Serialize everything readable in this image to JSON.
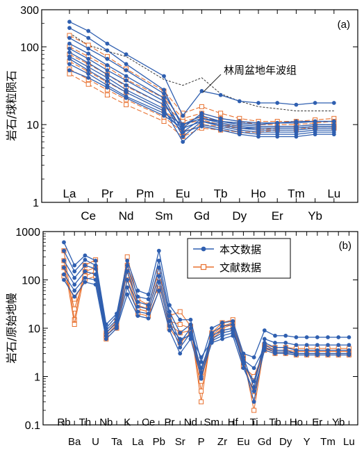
{
  "colors": {
    "this_study": "#2f5fb0",
    "literature": "#e8702e",
    "reference": "#333333",
    "axis": "#000000"
  },
  "chart_data": [
    {
      "type": "line",
      "panel_label": "(a)",
      "ylabel": "岩石/球粒陨石",
      "yscale": "log",
      "ylim": [
        1,
        300
      ],
      "y_ticks": [
        {
          "value": 300,
          "label": "300"
        },
        {
          "value": 100,
          "label": "100"
        },
        {
          "value": 10,
          "label": "10"
        },
        {
          "value": 1,
          "label": "1"
        }
      ],
      "categories": [
        "La",
        "Ce",
        "Pr",
        "Nd",
        "Pm",
        "Sm",
        "Eu",
        "Gd",
        "Tb",
        "Dy",
        "Ho",
        "Er",
        "Tm",
        "Yb",
        "Lu"
      ],
      "gap_indices": [
        4
      ],
      "annotation": {
        "text": "林周盆地年波组",
        "target_category": "Gd"
      },
      "reference_line": {
        "values": [
          150,
          105,
          88,
          75,
          0,
          38,
          32,
          40,
          25,
          20,
          17,
          16,
          15,
          15,
          15
        ]
      },
      "series": [
        {
          "group": "this_study",
          "values": [
            210,
            160,
            110,
            80,
            0,
            42,
            13,
            27,
            24,
            20,
            19,
            19,
            18,
            19,
            19
          ]
        },
        {
          "group": "this_study",
          "values": [
            175,
            130,
            90,
            60,
            0,
            28,
            9,
            14,
            12,
            11,
            10.5,
            10.5,
            10.5,
            11,
            11
          ]
        },
        {
          "group": "this_study",
          "values": [
            130,
            95,
            70,
            50,
            0,
            25,
            10,
            13,
            11,
            10,
            9.5,
            9.5,
            9.5,
            10,
            10
          ]
        },
        {
          "group": "this_study",
          "values": [
            110,
            82,
            58,
            42,
            0,
            22,
            8,
            12,
            10.5,
            9.5,
            9,
            9,
            9,
            9.5,
            9.5
          ]
        },
        {
          "group": "this_study",
          "values": [
            95,
            70,
            50,
            37,
            0,
            20,
            7,
            11,
            10,
            9,
            8.5,
            8.5,
            8.5,
            9,
            9
          ]
        },
        {
          "group": "this_study",
          "values": [
            85,
            62,
            44,
            32,
            0,
            18,
            9,
            11,
            9.5,
            8.5,
            8,
            8,
            8,
            8.5,
            8.5
          ]
        },
        {
          "group": "this_study",
          "values": [
            75,
            55,
            40,
            28,
            0,
            16,
            6,
            10,
            9,
            8,
            7.5,
            7.5,
            7.5,
            8,
            8
          ]
        },
        {
          "group": "this_study",
          "values": [
            70,
            50,
            36,
            26,
            0,
            15,
            8,
            9.5,
            8.5,
            7.5,
            7,
            7,
            7,
            7.5,
            7.5
          ]
        },
        {
          "group": "this_study",
          "values": [
            60,
            45,
            32,
            23,
            0,
            14,
            10,
            12,
            11,
            10.5,
            10,
            10.5,
            11,
            11,
            11
          ]
        },
        {
          "group": "this_study",
          "values": [
            50,
            40,
            30,
            22,
            0,
            13,
            9,
            11,
            10,
            9,
            9,
            9,
            9,
            9.5,
            9.5
          ]
        }
      ],
      "literature_series": [
        {
          "group": "literature",
          "values": [
            140,
            105,
            75,
            52,
            0,
            27,
            14,
            17,
            14,
            12,
            11,
            11,
            11,
            11.5,
            12
          ]
        },
        {
          "group": "literature",
          "values": [
            100,
            75,
            55,
            38,
            0,
            22,
            12,
            14,
            12,
            11,
            10,
            10,
            10,
            10.5,
            11
          ]
        },
        {
          "group": "literature",
          "values": [
            80,
            60,
            44,
            31,
            0,
            18,
            11,
            12.5,
            11,
            10,
            9.5,
            9.5,
            9.5,
            10,
            10
          ]
        },
        {
          "group": "literature",
          "values": [
            65,
            48,
            35,
            26,
            0,
            15,
            10,
            11.5,
            10,
            9.5,
            9,
            9,
            9,
            9.5,
            9.5
          ]
        },
        {
          "group": "literature",
          "values": [
            52,
            38,
            28,
            21,
            0,
            12.5,
            8,
            10,
            9.5,
            9,
            8.5,
            9,
            9,
            9,
            9
          ]
        },
        {
          "group": "literature",
          "values": [
            45,
            33,
            24,
            18,
            0,
            11,
            7,
            9,
            8.5,
            8,
            8,
            8.5,
            8.5,
            9,
            9
          ]
        }
      ]
    },
    {
      "type": "line",
      "panel_label": "(b)",
      "ylabel": "岩石/原始地幔",
      "yscale": "log",
      "ylim": [
        0.1,
        1000
      ],
      "y_ticks": [
        {
          "value": 1000,
          "label": "1000"
        },
        {
          "value": 100,
          "label": "100"
        },
        {
          "value": 10,
          "label": "10"
        },
        {
          "value": 1,
          "label": "1"
        },
        {
          "value": 0.1,
          "label": "0.1"
        }
      ],
      "categories": [
        "Rb",
        "Ba",
        "Th",
        "U",
        "Nb",
        "Ta",
        "K",
        "La",
        "Ce",
        "Pb",
        "Pr",
        "Sr",
        "Nd",
        "P",
        "Sm",
        "Zr",
        "Hf",
        "Eu",
        "Ti",
        "Gd",
        "Tb",
        "Dy",
        "Ho",
        "Y",
        "Er",
        "Tm",
        "Yb",
        "Lu"
      ],
      "legend": {
        "position": "top-center",
        "entries": [
          {
            "label": "本文数据",
            "group": "this_study"
          },
          {
            "label": "文献数据",
            "group": "literature"
          }
        ]
      },
      "series": [
        {
          "group": "this_study",
          "values": [
            600,
            200,
            320,
            250,
            12,
            20,
            250,
            60,
            50,
            400,
            30,
            15,
            15,
            2,
            10,
            13,
            14,
            3,
            2.5,
            9,
            7,
            7,
            6.5,
            6.5,
            6.5,
            6.5,
            6.5,
            6.5
          ]
        },
        {
          "group": "this_study",
          "values": [
            400,
            150,
            260,
            200,
            10,
            18,
            200,
            45,
            40,
            250,
            22,
            8,
            12,
            1.2,
            8,
            11,
            12,
            2.5,
            0.6,
            6,
            5,
            5,
            4.5,
            4.5,
            4.5,
            4.5,
            4.5,
            4.5
          ]
        },
        {
          "group": "this_study",
          "values": [
            250,
            110,
            200,
            170,
            9,
            15,
            150,
            35,
            30,
            180,
            18,
            5,
            10,
            0.9,
            7,
            9,
            10,
            2,
            0.3,
            5,
            4,
            4,
            3.5,
            3.5,
            3.5,
            3.5,
            3.5,
            3.5
          ]
        },
        {
          "group": "this_study",
          "values": [
            180,
            80,
            150,
            130,
            8,
            13,
            100,
            28,
            25,
            120,
            14,
            4,
            8,
            1.5,
            6,
            8,
            9,
            1.8,
            0.8,
            4.5,
            3.5,
            3.5,
            3,
            3,
            3,
            3,
            3,
            3
          ]
        },
        {
          "group": "this_study",
          "values": [
            130,
            60,
            110,
            100,
            7,
            11,
            70,
            22,
            20,
            90,
            11,
            6,
            7,
            2.5,
            5.5,
            7,
            8,
            2.2,
            1.5,
            4,
            3.2,
            3.2,
            3,
            3,
            3,
            3,
            3,
            3
          ]
        },
        {
          "group": "this_study",
          "values": [
            100,
            45,
            90,
            80,
            6,
            10,
            50,
            18,
            16,
            60,
            9,
            3,
            6,
            1,
            5,
            6,
            7,
            1.5,
            0.5,
            3.5,
            3,
            3,
            2.8,
            2.8,
            2.8,
            2.8,
            2.8,
            2.8
          ]
        }
      ],
      "literature_series": [
        {
          "group": "literature",
          "values": [
            400,
            15,
            200,
            260,
            8,
            14,
            300,
            40,
            30,
            150,
            18,
            22,
            11,
            0.3,
            8,
            13,
            15,
            2.5,
            0.2,
            4.5,
            4,
            4,
            3.8,
            3.8,
            3.8,
            3.8,
            3.8,
            3.8
          ]
        },
        {
          "group": "literature",
          "values": [
            250,
            12,
            150,
            180,
            7,
            12,
            200,
            30,
            25,
            110,
            14,
            12,
            10,
            0.5,
            7,
            11,
            13,
            2,
            0.4,
            4,
            3.5,
            3.5,
            3.3,
            3.3,
            3.3,
            3.3,
            3.3,
            3.3
          ]
        },
        {
          "group": "literature",
          "values": [
            180,
            25,
            120,
            150,
            7,
            11,
            150,
            25,
            22,
            80,
            12,
            8,
            9,
            0.8,
            6.5,
            10,
            12,
            1.8,
            0.7,
            3.8,
            3.2,
            3.2,
            3,
            3,
            3,
            3,
            3,
            3
          ]
        },
        {
          "group": "literature",
          "values": [
            120,
            40,
            100,
            120,
            6,
            10,
            100,
            20,
            18,
            60,
            10,
            5,
            8,
            1.2,
            6,
            9,
            10,
            1.6,
            1,
            3.5,
            3,
            3,
            2.8,
            2.8,
            2.8,
            2.8,
            2.8,
            2.8
          ]
        }
      ]
    }
  ]
}
